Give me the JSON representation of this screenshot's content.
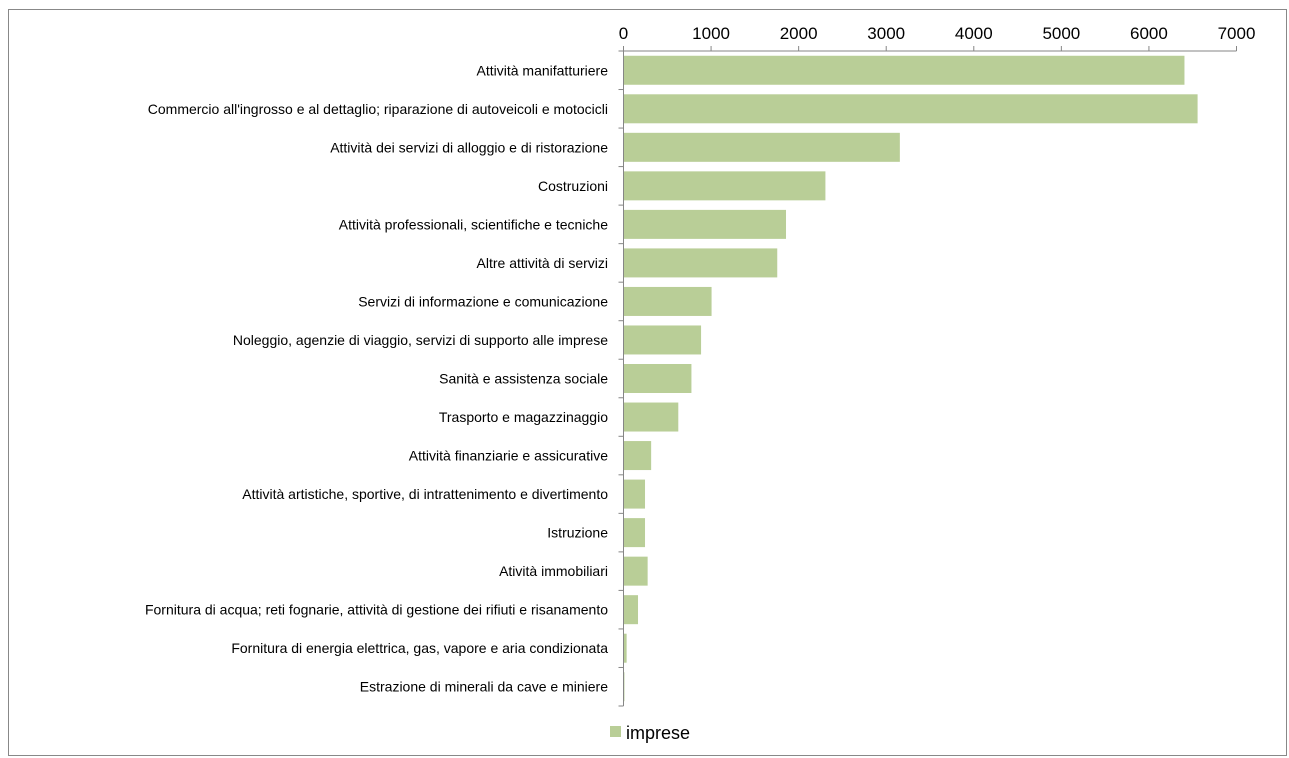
{
  "chart_data": {
    "type": "bar",
    "orientation": "horizontal",
    "categories": [
      "Attività manifatturiere",
      "Commercio all'ingrosso e al dettaglio; riparazione di autoveicoli e motocicli",
      "Attività dei servizi di alloggio e di ristorazione",
      "Costruzioni",
      "Attività professionali, scientifiche e tecniche",
      "Altre attività di servizi",
      "Servizi di informazione e comunicazione",
      "Noleggio, agenzie di viaggio, servizi di supporto alle imprese",
      "Sanità e assistenza sociale",
      "Trasporto e magazzinaggio",
      "Attività finanziarie e assicurative",
      "Attività artistiche, sportive, di intrattenimento e divertimento",
      "Istruzione",
      "Atività immobiliari",
      "Fornitura di acqua; reti fognarie, attività di gestione dei rifiuti e risanamento",
      "Fornitura di energia elettrica, gas, vapore e aria condizionata",
      "Estrazione di minerali da cave e miniere"
    ],
    "series": [
      {
        "name": "imprese",
        "color": "#B9CE97",
        "values": [
          6400,
          6550,
          3150,
          2300,
          1850,
          1750,
          1000,
          880,
          770,
          620,
          310,
          240,
          240,
          270,
          160,
          30,
          5
        ]
      }
    ],
    "xlim": [
      0,
      7000
    ],
    "xticks": [
      "0",
      "1000",
      "2000",
      "3000",
      "4000",
      "5000",
      "6000",
      "7000"
    ],
    "xtick_values": [
      0,
      1000,
      2000,
      3000,
      4000,
      5000,
      6000,
      7000
    ],
    "x_axis_position": "top",
    "grid": false,
    "legend": {
      "position": "bottom",
      "label": "imprese"
    },
    "title": "",
    "xlabel": "",
    "ylabel": ""
  }
}
